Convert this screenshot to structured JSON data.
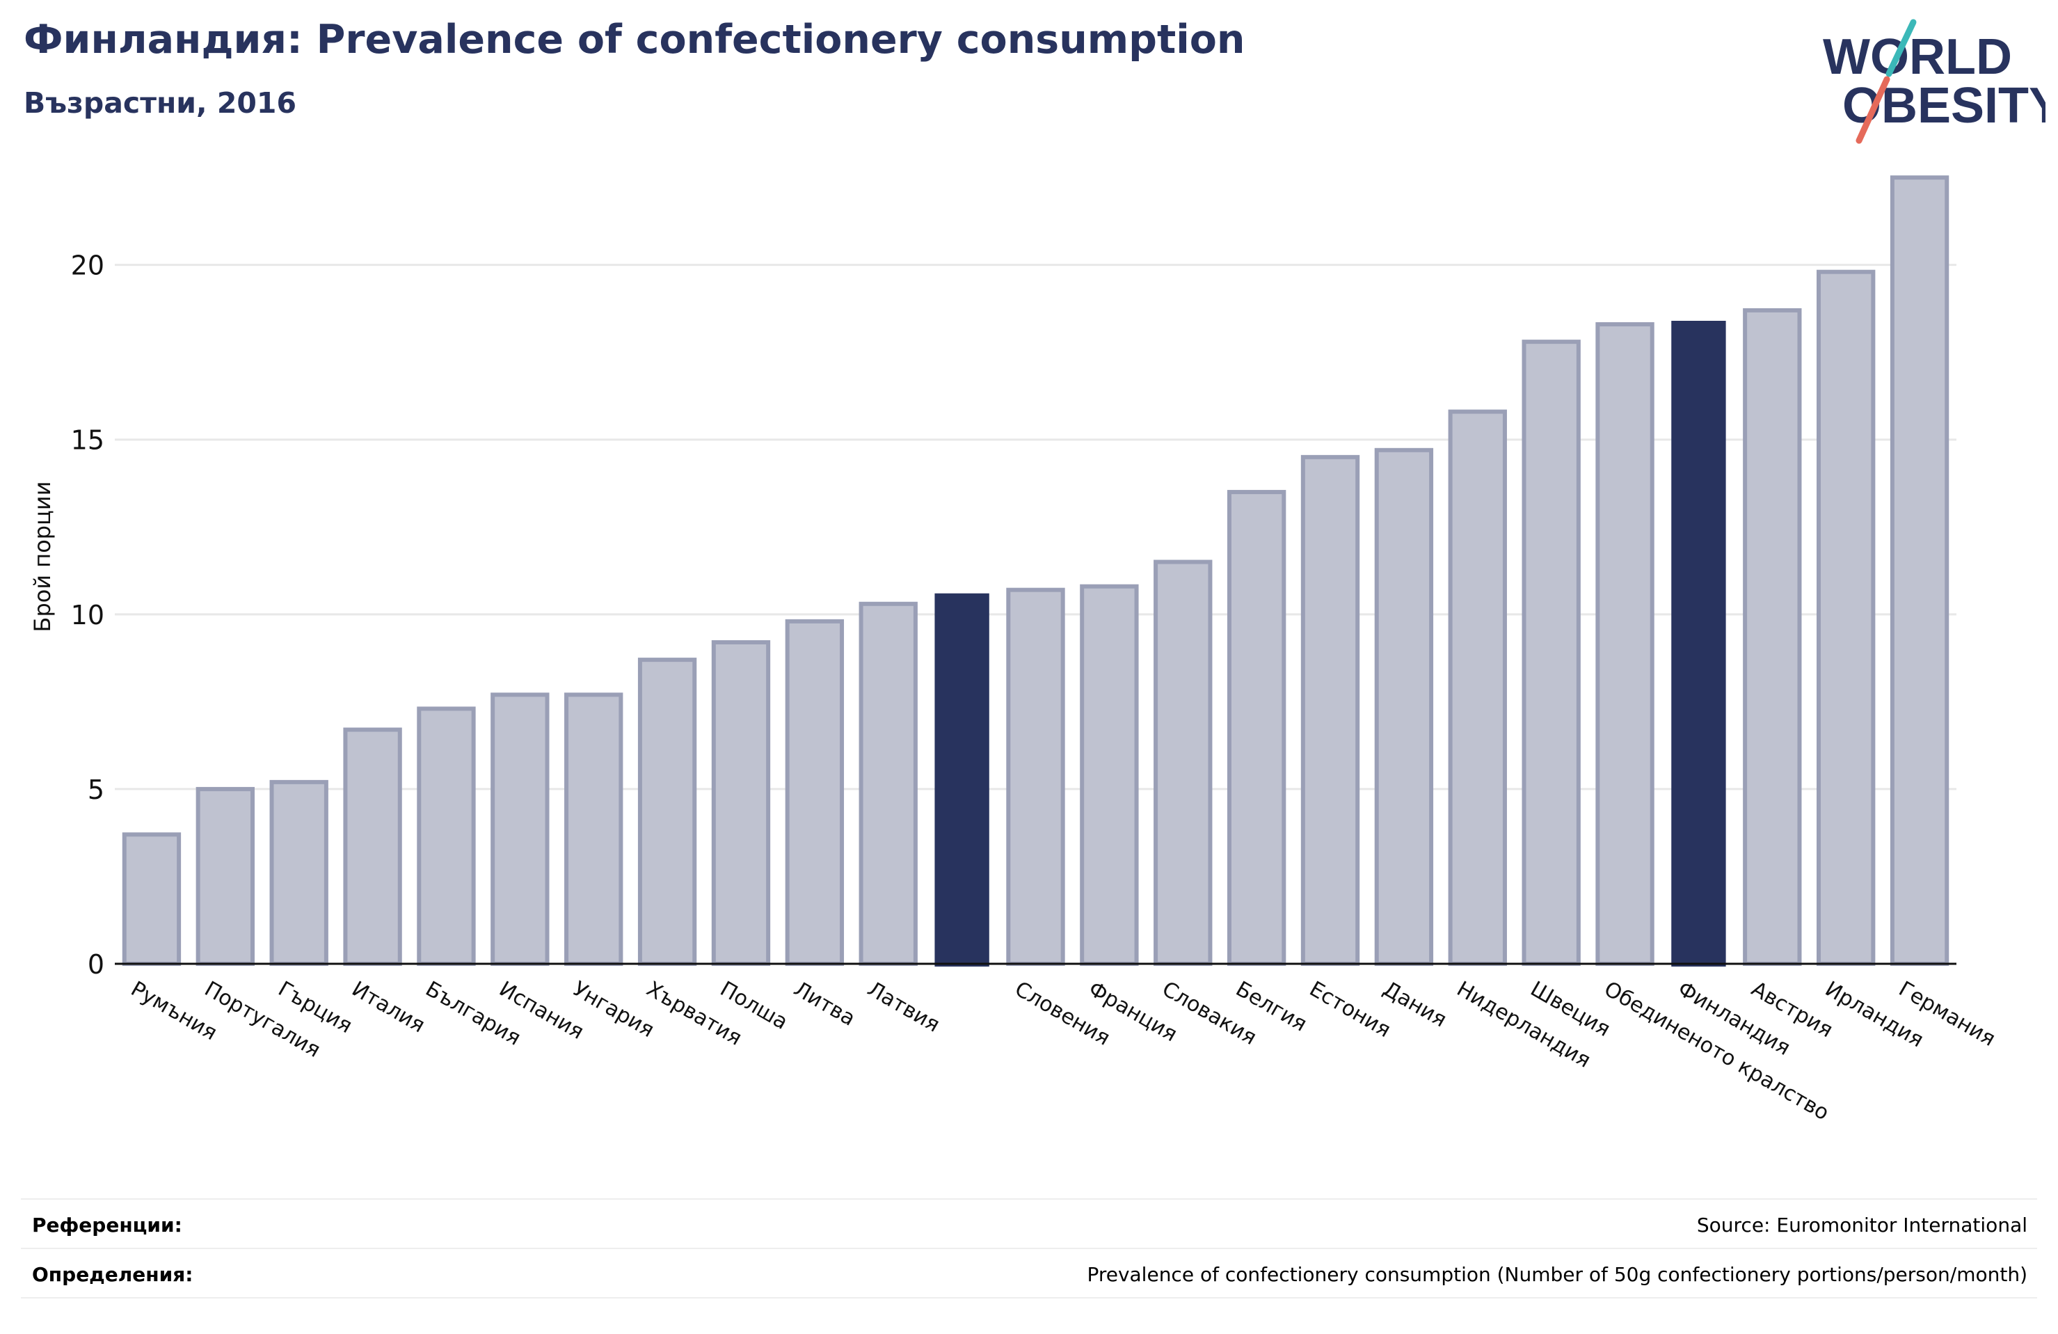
{
  "header": {
    "title": "Финландия: Prevalence of confectionery consumption",
    "subtitle": "Възрастни, 2016"
  },
  "logo": {
    "line1": "WORLD",
    "line2": "OBESITY",
    "icon": "world-obesity-logo"
  },
  "footer": {
    "references_label": "Референции:",
    "references_value": "Source: Euromonitor International",
    "definitions_label": "Определения:",
    "definitions_value": "Prevalence of confectionery consumption (Number of 50g confectionery portions/person/month)"
  },
  "colors": {
    "bar": "#bfc2d0",
    "bar_stroke": "#9a9fb6",
    "highlight": "#28335e",
    "grid": "#e8e8e8",
    "text": "#28335e"
  },
  "chart_data": {
    "type": "bar",
    "title": "Финландия: Prevalence of confectionery consumption",
    "subtitle": "Възрастни, 2016",
    "xlabel": "",
    "ylabel": "Брой порции",
    "ylim": [
      0,
      23
    ],
    "yticks": [
      0,
      5,
      10,
      15,
      20
    ],
    "grid": true,
    "categories": [
      "Румъния",
      "Португалия",
      "Гърция",
      "Италия",
      "България",
      "Испания",
      "Унгария",
      "Хърватия",
      "Полша",
      "Литва",
      "Латвия",
      "",
      "Словения",
      "Франция",
      "Словакия",
      "Белгия",
      "Естония",
      "Дания",
      "Нидерландия",
      "Швеция",
      "Обединеното кралство",
      "Финландия",
      "Австрия",
      "Ирландия",
      "Германия"
    ],
    "values": [
      3.7,
      5.0,
      5.2,
      6.7,
      7.3,
      7.7,
      7.7,
      8.7,
      9.2,
      9.8,
      10.3,
      10.6,
      10.7,
      10.8,
      11.5,
      13.5,
      14.5,
      14.7,
      15.8,
      17.8,
      18.3,
      18.4,
      18.7,
      19.8,
      22.5
    ],
    "highlight_indices": [
      11,
      21
    ]
  }
}
